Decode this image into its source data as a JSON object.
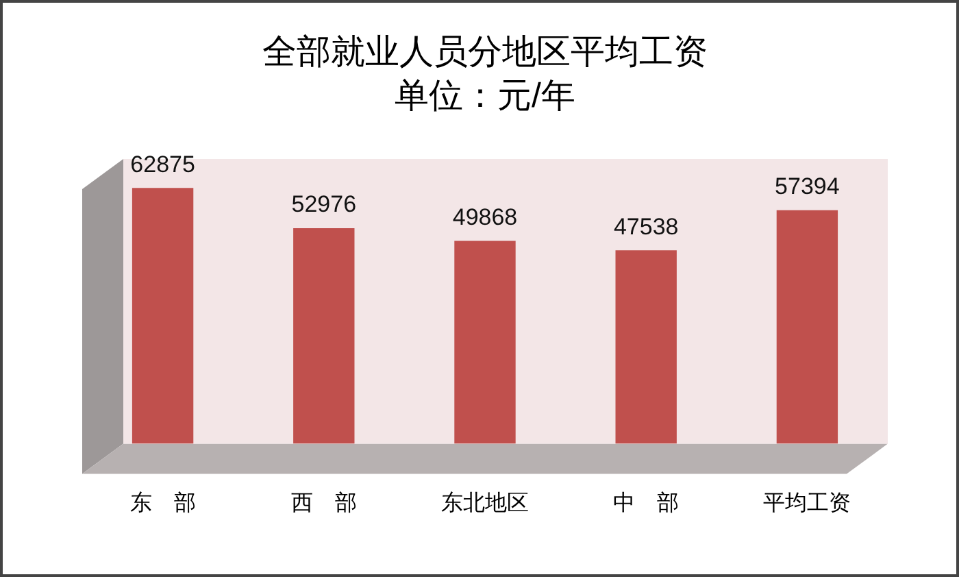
{
  "chart_data": {
    "type": "bar",
    "title": "全部就业人员分地区平均工资",
    "subtitle": "单位：元/年",
    "categories": [
      "东　部",
      "西　部",
      "东北地区",
      "中　部",
      "平均工资"
    ],
    "values": [
      62875,
      52976,
      49868,
      47538,
      57394
    ],
    "color": "#c0504d",
    "data_labels": true,
    "tick_labels": "x"
  }
}
